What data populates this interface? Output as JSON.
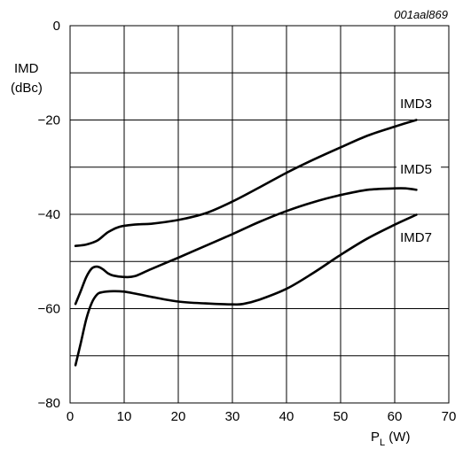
{
  "chart_data": {
    "type": "line",
    "title": "",
    "figure_id": "001aal869",
    "ylabel_line1": "IMD",
    "ylabel_line2": "(dBc)",
    "xlabel_main": "P",
    "xlabel_sub": "L",
    "xlabel_unit": " (W)",
    "xlim": [
      0,
      70
    ],
    "ylim": [
      -80,
      0
    ],
    "grid": true,
    "x_ticks": [
      "0",
      "10",
      "20",
      "30",
      "40",
      "50",
      "60",
      "70"
    ],
    "y_ticks": [
      "0",
      "−20",
      "−40",
      "−60",
      "−80"
    ],
    "series": [
      {
        "name": "IMD3",
        "x": [
          1,
          3,
          5,
          7,
          9,
          11,
          13,
          15,
          20,
          25,
          30,
          35,
          40,
          45,
          50,
          55,
          60,
          64
        ],
        "y": [
          -46.7,
          -46.4,
          -45.6,
          -43.8,
          -42.7,
          -42.3,
          -42.1,
          -42.0,
          -41.2,
          -39.8,
          -37.3,
          -34.3,
          -31.2,
          -28.4,
          -25.8,
          -23.3,
          -21.4,
          -20.0
        ]
      },
      {
        "name": "IMD5",
        "x": [
          1,
          2,
          3,
          4,
          5,
          6,
          7,
          8,
          10,
          12,
          15,
          20,
          25,
          30,
          35,
          40,
          45,
          50,
          55,
          60,
          62,
          64
        ],
        "y": [
          -59.0,
          -56.2,
          -53.3,
          -51.5,
          -51.1,
          -51.6,
          -52.5,
          -53.0,
          -53.3,
          -53.1,
          -51.6,
          -49.2,
          -46.7,
          -44.2,
          -41.6,
          -39.3,
          -37.4,
          -35.9,
          -34.8,
          -34.5,
          -34.5,
          -34.8
        ]
      },
      {
        "name": "IMD7",
        "x": [
          1,
          2,
          3,
          4,
          5,
          6,
          8,
          10,
          12,
          15,
          20,
          25,
          30,
          32,
          35,
          40,
          45,
          50,
          55,
          60,
          64
        ],
        "y": [
          -72.0,
          -67.2,
          -62.2,
          -58.8,
          -57.0,
          -56.5,
          -56.3,
          -56.4,
          -56.8,
          -57.5,
          -58.5,
          -58.9,
          -59.1,
          -59.0,
          -58.1,
          -55.8,
          -52.4,
          -48.6,
          -45.1,
          -42.2,
          -40.1
        ]
      }
    ],
    "series_labels": [
      {
        "text": "IMD3",
        "at_x": 61.0,
        "at_y": -17.5
      },
      {
        "text": "IMD5",
        "at_x": 61.0,
        "at_y": -31.4
      },
      {
        "text": "IMD7",
        "at_x": 61.0,
        "at_y": -45.8
      }
    ]
  }
}
